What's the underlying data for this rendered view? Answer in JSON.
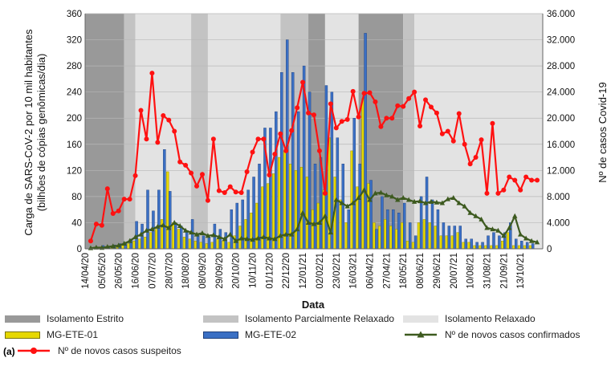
{
  "panel_label": "(a)",
  "colors": {
    "strict": "#999999",
    "partial": "#c3c3c3",
    "relaxed": "#e3e3e3",
    "ete01": "#e6d800",
    "ete02": "#3a6fc4",
    "confirmed": "#3d5a1f",
    "suspected": "#ff1111"
  },
  "legend": {
    "strict": "Isolamento Estrito",
    "partial": "Isolamento Parcialmente Relaxado",
    "relaxed": "Isolamento Relaxado",
    "ete01": "MG-ETE-01",
    "ete02": "MG-ETE-02",
    "confirmed": "Nº de novos casos confirmados",
    "suspected": "Nº de novos casos suspeitos"
  },
  "chart_data": {
    "type": "bar+line",
    "xlabel": "Data",
    "ylabel_left_line1": "Carga de SARS-CoV-2 por 10 mil habitantes",
    "ylabel_left_line2": "(bilhões de cópias genômicas/dia)",
    "ylabel_right": "Nº de casos Covid-19",
    "ylim_left": [
      0,
      360
    ],
    "ylim_right": [
      0,
      36000
    ],
    "yticks_left": [
      "0",
      "40",
      "80",
      "120",
      "160",
      "200",
      "240",
      "280",
      "320",
      "360"
    ],
    "yticks_right": [
      "0",
      "4.000",
      "8.000",
      "12.000",
      "16.000",
      "20.000",
      "24.000",
      "28.000",
      "32.000",
      "36.000"
    ],
    "xticks": [
      "14/04/20",
      "05/05/20",
      "26/05/20",
      "16/06/20",
      "07/07/20",
      "28/07/20",
      "18/08/20",
      "08/09/20",
      "29/09/20",
      "20/10/20",
      "10/11/20",
      "01/12/20",
      "22/12/20",
      "12/01/21",
      "02/02/21",
      "23/02/21",
      "16/03/21",
      "06/04/21",
      "27/04/21",
      "18/05/21",
      "08/06/21",
      "29/06/21",
      "20/07/21",
      "10/08/21",
      "31/08/21",
      "21/09/21",
      "13/10/21"
    ],
    "x_units": "weeks since 14/04/20",
    "periods": [
      {
        "type": "strict",
        "start": 0,
        "end": 7
      },
      {
        "type": "partial",
        "start": 7,
        "end": 9
      },
      {
        "type": "relaxed",
        "start": 9,
        "end": 19
      },
      {
        "type": "partial",
        "start": 19,
        "end": 22
      },
      {
        "type": "relaxed",
        "start": 22,
        "end": 35
      },
      {
        "type": "partial",
        "start": 35,
        "end": 40
      },
      {
        "type": "strict",
        "start": 40,
        "end": 43
      },
      {
        "type": "relaxed",
        "start": 43,
        "end": 49
      },
      {
        "type": "strict",
        "start": 49,
        "end": 57
      },
      {
        "type": "partial",
        "start": 57,
        "end": 59
      },
      {
        "type": "relaxed",
        "start": 59,
        "end": 82
      }
    ],
    "series_ete01": {
      "name": "MG-ETE-01",
      "x": [
        3,
        4,
        5,
        6,
        7,
        8,
        9,
        10,
        11,
        12,
        13,
        14,
        15,
        16,
        17,
        18,
        19,
        20,
        21,
        22,
        23,
        24,
        25,
        26,
        27,
        28,
        29,
        30,
        31,
        32,
        33,
        34,
        35,
        36,
        37,
        38,
        39,
        40,
        41,
        42,
        43,
        44,
        45,
        46,
        47,
        48,
        49,
        50,
        51,
        52,
        53,
        54,
        55,
        56,
        57,
        58,
        59,
        60,
        61,
        62,
        63,
        64,
        65,
        66,
        67,
        68,
        69,
        70,
        71,
        72,
        73,
        74,
        75,
        76,
        77,
        78,
        79,
        80
      ],
      "values": [
        3,
        2,
        4,
        5,
        6,
        8,
        12,
        15,
        18,
        25,
        30,
        45,
        118,
        40,
        30,
        18,
        15,
        12,
        10,
        8,
        10,
        15,
        12,
        10,
        20,
        35,
        45,
        55,
        70,
        95,
        100,
        115,
        140,
        150,
        130,
        120,
        125,
        110,
        60,
        70,
        90,
        170,
        110,
        75,
        40,
        150,
        95,
        230,
        100,
        40,
        35,
        45,
        35,
        30,
        40,
        12,
        10,
        40,
        45,
        40,
        35,
        20,
        20,
        20,
        25,
        10,
        10,
        5,
        5,
        5,
        5,
        5,
        12,
        25,
        5,
        5,
        5,
        5
      ]
    },
    "series_ete02": {
      "name": "MG-ETE-02",
      "x": [
        3,
        4,
        5,
        6,
        7,
        8,
        9,
        10,
        11,
        12,
        13,
        14,
        15,
        16,
        17,
        18,
        19,
        20,
        21,
        22,
        23,
        24,
        25,
        26,
        27,
        28,
        29,
        30,
        31,
        32,
        33,
        34,
        35,
        36,
        37,
        38,
        39,
        40,
        41,
        42,
        43,
        44,
        45,
        46,
        47,
        48,
        49,
        50,
        51,
        52,
        53,
        54,
        55,
        56,
        57,
        58,
        59,
        60,
        61,
        62,
        63,
        64,
        65,
        66,
        67,
        68,
        69,
        70,
        71,
        72,
        73,
        74,
        75,
        76,
        77,
        78,
        79,
        80
      ],
      "values": [
        5,
        4,
        6,
        8,
        10,
        15,
        42,
        38,
        90,
        58,
        90,
        152,
        88,
        40,
        35,
        28,
        45,
        22,
        20,
        18,
        38,
        30,
        25,
        60,
        70,
        75,
        90,
        110,
        130,
        185,
        185,
        210,
        270,
        320,
        270,
        210,
        280,
        240,
        130,
        140,
        250,
        240,
        170,
        130,
        60,
        200,
        130,
        330,
        105,
        30,
        80,
        60,
        60,
        55,
        70,
        40,
        20,
        80,
        110,
        75,
        60,
        40,
        35,
        35,
        35,
        15,
        15,
        10,
        10,
        20,
        25,
        20,
        25,
        40,
        15,
        12,
        10,
        8
      ]
    },
    "series_confirmed": {
      "name": "Nº de novos casos confirmados",
      "x": [
        1,
        2,
        3,
        4,
        5,
        6,
        7,
        8,
        9,
        10,
        11,
        12,
        13,
        14,
        15,
        16,
        17,
        18,
        19,
        20,
        21,
        22,
        23,
        24,
        25,
        26,
        27,
        28,
        29,
        30,
        31,
        32,
        33,
        34,
        35,
        36,
        37,
        38,
        39,
        40,
        41,
        42,
        43,
        44,
        45,
        46,
        47,
        48,
        49,
        50,
        51,
        52,
        53,
        54,
        55,
        56,
        57,
        58,
        59,
        60,
        61,
        62,
        63,
        64,
        65,
        66,
        67,
        68,
        69,
        70,
        71,
        72,
        73,
        74,
        75,
        76,
        77,
        78,
        79,
        80,
        81
      ],
      "values": [
        100,
        200,
        150,
        300,
        400,
        500,
        800,
        1200,
        1800,
        2200,
        2800,
        3000,
        3400,
        3600,
        3200,
        4000,
        3500,
        2800,
        2500,
        2200,
        2400,
        2000,
        2100,
        1800,
        1500,
        2200,
        1200,
        1600,
        1500,
        1400,
        1600,
        1800,
        1600,
        1500,
        2000,
        2200,
        2200,
        3000,
        5500,
        4000,
        3800,
        4000,
        5000,
        2500,
        7500,
        7000,
        6500,
        7000,
        7800,
        9000,
        7500,
        8500,
        8600,
        8200,
        8000,
        7500,
        7800,
        7500,
        7200,
        7300,
        7000,
        7200,
        7100,
        7000,
        7600,
        7800,
        7000,
        6500,
        5500,
        5000,
        4500,
        3200,
        3000,
        2800,
        2000,
        3200,
        5000,
        2200,
        1600,
        1200,
        1000
      ]
    },
    "series_suspected": {
      "name": "Nº de novos casos suspeitos",
      "x": [
        1,
        2,
        3,
        4,
        5,
        6,
        7,
        8,
        9,
        10,
        11,
        12,
        13,
        14,
        15,
        16,
        17,
        18,
        19,
        20,
        21,
        22,
        23,
        24,
        25,
        26,
        27,
        28,
        29,
        30,
        31,
        32,
        33,
        34,
        35,
        36,
        37,
        38,
        39,
        40,
        41,
        42,
        43,
        44,
        45,
        46,
        47,
        48,
        49,
        50,
        51,
        52,
        53,
        54,
        55,
        56,
        57,
        58,
        59,
        60,
        61,
        62,
        63,
        64,
        65,
        66,
        67,
        68,
        69,
        70,
        71,
        72,
        73,
        74,
        75,
        76,
        77,
        78,
        79,
        80,
        81
      ],
      "values": [
        1200,
        3800,
        3600,
        9200,
        5400,
        5800,
        7600,
        7600,
        11200,
        21200,
        16800,
        26900,
        16300,
        20400,
        19700,
        18000,
        13300,
        12800,
        11600,
        9600,
        11400,
        7400,
        16800,
        8900,
        8600,
        9500,
        8700,
        8600,
        11800,
        14800,
        16800,
        16800,
        11300,
        14500,
        17600,
        15000,
        18100,
        21600,
        25500,
        20800,
        20500,
        15000,
        8500,
        22200,
        18500,
        19500,
        19800,
        24100,
        20200,
        23800,
        23900,
        22500,
        18700,
        20000,
        20000,
        21900,
        21800,
        23000,
        24000,
        18800,
        22800,
        21700,
        20800,
        17600,
        18000,
        16500,
        20700,
        16000,
        13000,
        14000,
        16700,
        8500,
        19200,
        8500,
        9000,
        11000,
        10500,
        9000,
        11000,
        10500,
        10500
      ]
    }
  }
}
